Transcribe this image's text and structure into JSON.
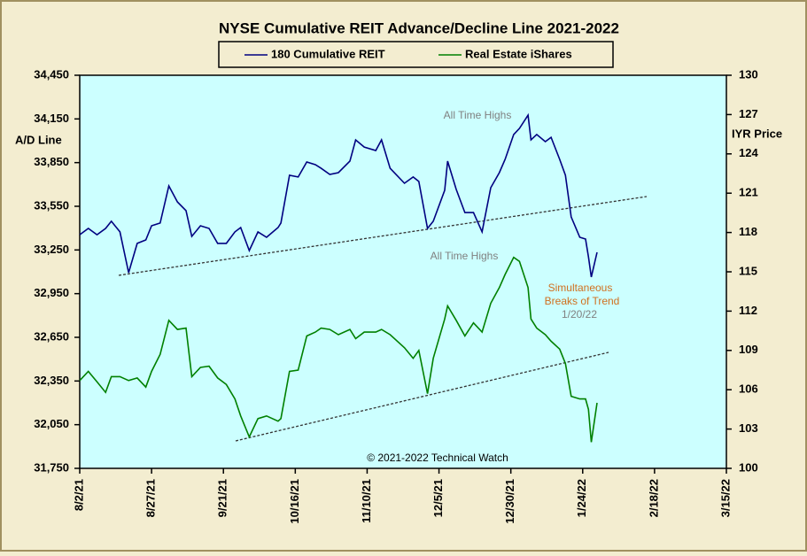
{
  "chart_data": {
    "type": "line",
    "title": "NYSE Cumulative  REIT Advance/Decline  Line 2021-2022",
    "y_label": "A/D Line",
    "y2_label": "IYR Price",
    "credit": "© 2021-2022  Technical  Watch",
    "annotations": [
      {
        "text": "All Time Highs",
        "color": "#808080"
      },
      {
        "text": "All Time Highs",
        "color": "#808080"
      },
      {
        "text": "Simultaneous",
        "color": "#d07020"
      },
      {
        "text": "Breaks of Trend",
        "color": "#d07020"
      },
      {
        "text": "1/20/22",
        "color": "#808080"
      }
    ],
    "legend": "top",
    "x": [
      "2021-08-02",
      "2021-08-05",
      "2021-08-08",
      "2021-08-11",
      "2021-08-13",
      "2021-08-16",
      "2021-08-19",
      "2021-08-22",
      "2021-08-25",
      "2021-08-27",
      "2021-08-30",
      "2021-09-02",
      "2021-09-05",
      "2021-09-08",
      "2021-09-10",
      "2021-09-13",
      "2021-09-16",
      "2021-09-19",
      "2021-09-22",
      "2021-09-25",
      "2021-09-27",
      "2021-09-30",
      "2021-10-03",
      "2021-10-06",
      "2021-10-10",
      "2021-10-11",
      "2021-10-14",
      "2021-10-17",
      "2021-10-20",
      "2021-10-23",
      "2021-10-25",
      "2021-10-28",
      "2021-10-31",
      "2021-11-04",
      "2021-11-06",
      "2021-11-09",
      "2021-11-13",
      "2021-11-15",
      "2021-11-18",
      "2021-11-23",
      "2021-11-26",
      "2021-11-28",
      "2021-12-01",
      "2021-12-03",
      "2021-12-07",
      "2021-12-08",
      "2021-12-11",
      "2021-12-14",
      "2021-12-17",
      "2021-12-20",
      "2021-12-23",
      "2021-12-26",
      "2021-12-28",
      "2021-12-31",
      "2022-01-02",
      "2022-01-05",
      "2022-01-06",
      "2022-01-08",
      "2022-01-11",
      "2022-01-13",
      "2022-01-16",
      "2022-01-18",
      "2022-01-20",
      "2022-01-23",
      "2022-01-25",
      "2022-01-26",
      "2022-01-27",
      "2022-01-29"
    ],
    "series": [
      {
        "name": "180 Cumulative REIT",
        "color": "#000080",
        "values": [
          33355,
          33398,
          33355,
          33398,
          33447,
          33374,
          33094,
          33295,
          33319,
          33416,
          33435,
          33690,
          33580,
          33520,
          33343,
          33416,
          33398,
          33295,
          33295,
          33374,
          33404,
          33246,
          33374,
          33337,
          33404,
          33435,
          33763,
          33751,
          33854,
          33836,
          33811,
          33769,
          33781,
          33860,
          34006,
          33957,
          33933,
          34006,
          33811,
          33708,
          33751,
          33720,
          33398,
          33447,
          33660,
          33860,
          33666,
          33507,
          33507,
          33374,
          33678,
          33781,
          33872,
          34043,
          34085,
          34176,
          34006,
          34043,
          33994,
          34024,
          33872,
          33763,
          33477,
          33337,
          33325,
          33203,
          33064,
          33234
        ]
      },
      {
        "name": "Real Estate iShares",
        "color": "#008000",
        "axis": "y2",
        "values": [
          106.7,
          107.4,
          106.6,
          105.8,
          107.0,
          107.0,
          106.7,
          106.9,
          106.2,
          107.4,
          108.7,
          111.3,
          110.6,
          110.7,
          107.0,
          107.7,
          107.8,
          106.9,
          106.4,
          105.3,
          104.0,
          102.4,
          103.8,
          104.0,
          103.6,
          103.8,
          107.4,
          107.5,
          110.1,
          110.4,
          110.7,
          110.6,
          110.2,
          110.6,
          109.9,
          110.4,
          110.4,
          110.6,
          110.2,
          109.2,
          108.4,
          109.0,
          105.7,
          108.4,
          111.4,
          112.4,
          111.3,
          110.1,
          111.1,
          110.4,
          112.6,
          113.8,
          114.8,
          116.1,
          115.8,
          113.8,
          111.4,
          110.7,
          110.2,
          109.7,
          109.1,
          108.0,
          105.5,
          105.3,
          105.3,
          104.5,
          102.0,
          105.0
        ]
      }
    ],
    "xlim": [
      "2021-08-02",
      "2022-03-15"
    ],
    "xticks": [
      {
        "value": "2021-08-02",
        "label": "8/2/21"
      },
      {
        "value": "2021-08-27",
        "label": "8/27/21"
      },
      {
        "value": "2021-09-21",
        "label": "9/21/21"
      },
      {
        "value": "2021-10-16",
        "label": "10/16/21"
      },
      {
        "value": "2021-11-10",
        "label": "11/10/21"
      },
      {
        "value": "2021-12-05",
        "label": "12/5/21"
      },
      {
        "value": "2021-12-30",
        "label": "12/30/21"
      },
      {
        "value": "2022-01-24",
        "label": "1/24/22"
      },
      {
        "value": "2022-02-18",
        "label": "2/18/22"
      },
      {
        "value": "2022-03-15",
        "label": "3/15/22"
      }
    ],
    "ylim": [
      31750,
      34450
    ],
    "yticks": [
      {
        "value": 31750,
        "label": "31,750"
      },
      {
        "value": 32050,
        "label": "32,050"
      },
      {
        "value": 32350,
        "label": "32,350"
      },
      {
        "value": 32650,
        "label": "32,650"
      },
      {
        "value": 32950,
        "label": "32,950"
      },
      {
        "value": 33250,
        "label": "33,250"
      },
      {
        "value": 33550,
        "label": "33,550"
      },
      {
        "value": 33850,
        "label": "33,850"
      },
      {
        "value": 34150,
        "label": "34,150"
      },
      {
        "value": 34450,
        "label": "34,450"
      }
    ],
    "y2lim": [
      100,
      130
    ],
    "y2ticks": [
      100,
      103,
      106,
      109,
      112,
      115,
      118,
      121,
      124,
      127,
      130
    ],
    "plot_background": "#ccffff",
    "grid": false
  }
}
